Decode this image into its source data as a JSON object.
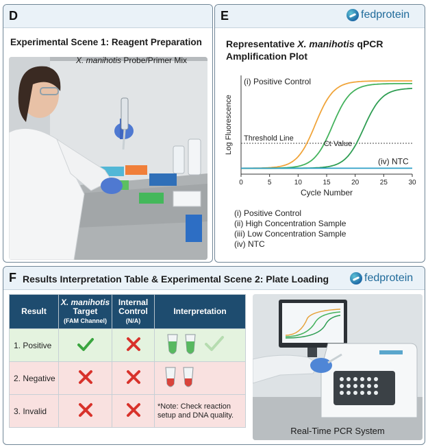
{
  "panel_d": {
    "letter": "D",
    "title": "Experimental Scene 1: Reagent Preparation",
    "photo_label_italic": "X. manihotis",
    "photo_label_rest": " Probe/Primer Mix"
  },
  "panel_e": {
    "letter": "E",
    "brand": "fedprotein",
    "title_prefix": "Representative ",
    "title_italic": "X. manihotis",
    "title_suffix": " qPCR",
    "title_line2": "Amplification Plot",
    "legend": [
      "(i) Positive Control",
      "(ii) High Concentration Sample",
      "(iii) Low Concentration Sample",
      "(iv) NTC"
    ]
  },
  "chart_data": {
    "type": "line",
    "xlabel": "Cycle Number",
    "ylabel": "Log Fluorescence",
    "xlim": [
      0,
      30
    ],
    "xticks": [
      0,
      5,
      10,
      15,
      20,
      25,
      30
    ],
    "grid": false,
    "threshold": 0.3,
    "annotations": {
      "positive_control": "(i) Positive Control",
      "threshold": "Threshold Line",
      "ct": "Ct Value",
      "ntc": "(iv) NTC"
    },
    "series": [
      {
        "name": "(i) Positive Control",
        "color": "#f0a43a",
        "midpoint": 13,
        "max": 1.0
      },
      {
        "name": "(ii) High Concentration Sample",
        "color": "#43b25c",
        "midpoint": 16,
        "max": 0.97
      },
      {
        "name": "(iii) Low Concentration Sample",
        "color": "#2e9d52",
        "midpoint": 21.5,
        "max": 0.92
      },
      {
        "name": "(iv) NTC",
        "color": "#2d9fc7",
        "midpoint": null,
        "max": 0.02
      }
    ]
  },
  "panel_f": {
    "letter": "F",
    "title": "Results Interpretation Table & Experimental Scene 2: Plate Loading",
    "brand": "fedprotein",
    "table": {
      "headers": {
        "result": "Result",
        "target_italic": "X. manihotis",
        "target_line2": "Target",
        "target_sub": "(FAM Channel)",
        "control_line1": "Internal",
        "control_line2": "Control",
        "control_sub": "(N/A)",
        "interpretation": "Interpretation"
      },
      "rows": [
        {
          "result": "1. Positive"
        },
        {
          "result": "2. Negative"
        },
        {
          "result": "3. Invalid",
          "note": "*Note: Check reaction setup and DNA quality."
        }
      ]
    },
    "photo_caption": "Real-Time PCR System",
    "colors": {
      "check": "#3aa53f",
      "cross": "#d8322b",
      "header": "#1e4c6f"
    }
  }
}
